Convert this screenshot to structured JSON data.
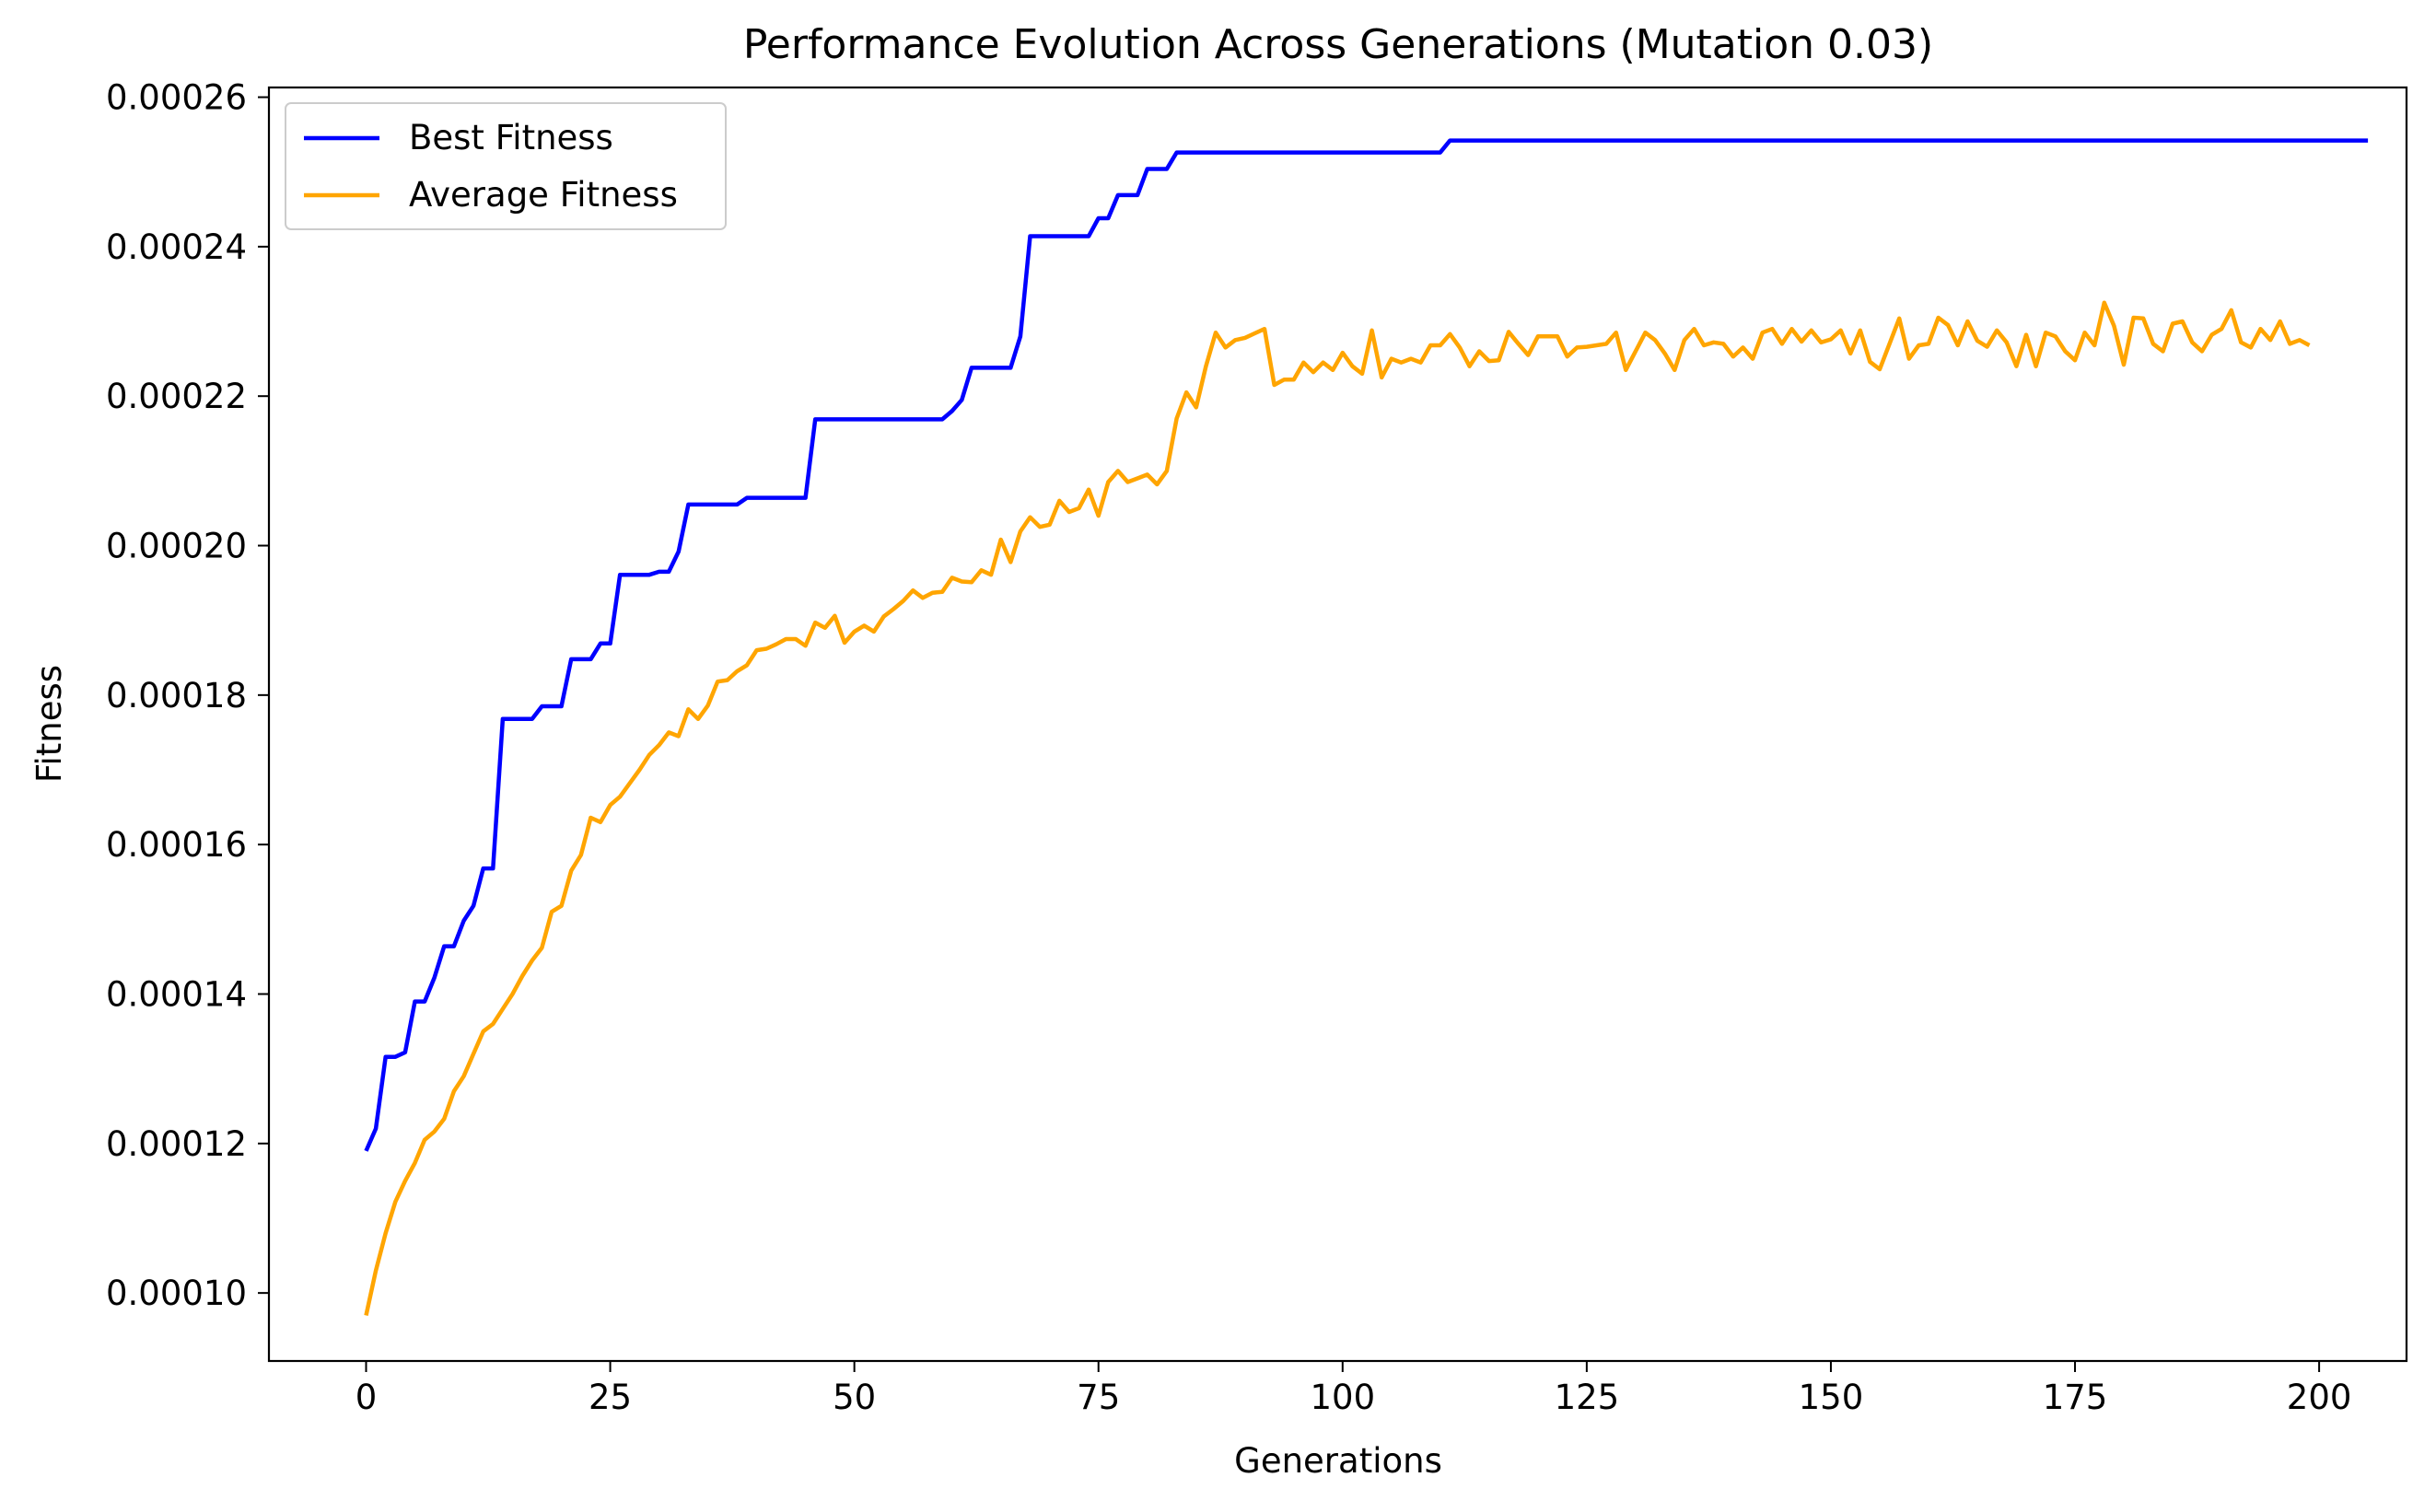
{
  "chart_data": {
    "type": "line",
    "title": "Performance Evolution Across Generations (Mutation 0.03)",
    "xlabel": "Generations",
    "ylabel": "Fitness",
    "xlim": [
      -9.95,
      208.95
    ],
    "ylim": [
      9.09e-05,
      0.0002613
    ],
    "x_ticks": [
      0,
      25,
      50,
      75,
      100,
      125,
      150,
      175,
      200
    ],
    "x_tick_labels": [
      "0",
      "25",
      "50",
      "75",
      "100",
      "125",
      "150",
      "175",
      "200"
    ],
    "y_ticks": [
      0.0001,
      0.00012,
      0.00014,
      0.00016,
      0.00018,
      0.0002,
      0.00022,
      0.00024,
      0.00026
    ],
    "y_tick_labels": [
      "0.00010",
      "0.00012",
      "0.00014",
      "0.00016",
      "0.00018",
      "0.00020",
      "0.00022",
      "0.00024",
      "0.00026"
    ],
    "grid": false,
    "legend_position": "top-left",
    "series": [
      {
        "name": "Best Fitness",
        "color": "#0000ff",
        "values": [
          0.000119,
          0.000122,
          0.0001316,
          0.0001316,
          0.0001322,
          0.000139,
          0.000139,
          0.0001422,
          0.0001464,
          0.0001464,
          0.0001498,
          0.0001518,
          0.0001568,
          0.0001568,
          0.0001768,
          0.0001768,
          0.0001768,
          0.0001768,
          0.0001785,
          0.0001785,
          0.0001785,
          0.0001848,
          0.0001848,
          0.0001848,
          0.0001869,
          0.0001869,
          0.0001961,
          0.0001961,
          0.0001961,
          0.0001961,
          0.0001965,
          0.0001965,
          0.0001992,
          0.0002055,
          0.0002055,
          0.0002055,
          0.0002055,
          0.0002055,
          0.0002055,
          0.0002064,
          0.0002064,
          0.0002064,
          0.0002064,
          0.0002064,
          0.0002064,
          0.0002064,
          0.0002169,
          0.0002169,
          0.0002169,
          0.0002169,
          0.0002169,
          0.0002169,
          0.0002169,
          0.0002169,
          0.0002169,
          0.0002169,
          0.0002169,
          0.0002169,
          0.0002169,
          0.0002169,
          0.000218,
          0.0002195,
          0.0002238,
          0.0002238,
          0.0002238,
          0.0002238,
          0.0002238,
          0.000228,
          0.0002414,
          0.0002414,
          0.0002414,
          0.0002414,
          0.0002414,
          0.0002414,
          0.0002414,
          0.0002438,
          0.0002438,
          0.0002469,
          0.0002469,
          0.0002469,
          0.0002504,
          0.0002504,
          0.0002504,
          0.0002526,
          0.0002526,
          0.0002526,
          0.0002526,
          0.0002526,
          0.0002526,
          0.0002526,
          0.0002526,
          0.0002526,
          0.0002526,
          0.0002526,
          0.0002526,
          0.0002526,
          0.0002526,
          0.0002526,
          0.0002526,
          0.0002526,
          0.0002526,
          0.0002526,
          0.0002526,
          0.0002526,
          0.0002526,
          0.0002526,
          0.0002526,
          0.0002526,
          0.0002526,
          0.0002526,
          0.0002526,
          0.0002542,
          0.0002542,
          0.0002542,
          0.0002542,
          0.0002542,
          0.0002542,
          0.0002542,
          0.0002542,
          0.0002542,
          0.0002542,
          0.0002542,
          0.0002542,
          0.0002542,
          0.0002542,
          0.0002542,
          0.0002542,
          0.0002542,
          0.0002542,
          0.0002542,
          0.0002542,
          0.0002542,
          0.0002542,
          0.0002542,
          0.0002542,
          0.0002542,
          0.0002542,
          0.0002542,
          0.0002542,
          0.0002542,
          0.0002542,
          0.0002542,
          0.0002542,
          0.0002542,
          0.0002542,
          0.0002542,
          0.0002542,
          0.0002542,
          0.0002542,
          0.0002542,
          0.0002542,
          0.0002542,
          0.0002542,
          0.0002542,
          0.0002542,
          0.0002542,
          0.0002542,
          0.0002542,
          0.0002542,
          0.0002542,
          0.0002542,
          0.0002542,
          0.0002542,
          0.0002542,
          0.0002542,
          0.0002542,
          0.0002542,
          0.0002542,
          0.0002542,
          0.0002542,
          0.0002542,
          0.0002542,
          0.0002542,
          0.0002542,
          0.0002542,
          0.0002542,
          0.0002542,
          0.0002542,
          0.0002542,
          0.0002542,
          0.0002542,
          0.0002542,
          0.0002542,
          0.0002542,
          0.0002542,
          0.0002542,
          0.0002542,
          0.0002542,
          0.0002542,
          0.0002542,
          0.0002542,
          0.0002542,
          0.0002542,
          0.0002542,
          0.0002542,
          0.0002542,
          0.0002542,
          0.0002542,
          0.0002542,
          0.0002542,
          0.0002542,
          0.0002542,
          0.0002542,
          0.0002542,
          0.0002542,
          0.0002542
        ]
      },
      {
        "name": "Average Fitness",
        "color": "#ffa500",
        "values": [
          9.7e-05,
          0.000103,
          0.000108,
          0.0001122,
          0.000115,
          0.0001174,
          0.0001205,
          0.0001216,
          0.0001233,
          0.000127,
          0.000129,
          0.000132,
          0.000135,
          0.000136,
          0.000138,
          0.00014,
          0.0001424,
          0.0001445,
          0.0001462,
          0.000151,
          0.0001518,
          0.0001565,
          0.0001586,
          0.0001636,
          0.000163,
          0.0001653,
          0.0001664,
          0.0001682,
          0.00017,
          0.000172,
          0.0001733,
          0.000175,
          0.0001745,
          0.0001781,
          0.0001768,
          0.0001786,
          0.0001818,
          0.000182,
          0.0001832,
          0.000184,
          0.000186,
          0.0001862,
          0.0001868,
          0.0001875,
          0.0001875,
          0.0001866,
          0.0001897,
          0.000189,
          0.0001906,
          0.000187,
          0.0001885,
          0.0001893,
          0.0001885,
          0.0001905,
          0.0001915,
          0.0001926,
          0.000194,
          0.000193,
          0.0001937,
          0.0001938,
          0.0001957,
          0.0001952,
          0.0001951,
          0.0001967,
          0.0001961,
          0.0002008,
          0.0001978,
          0.0002019,
          0.0002038,
          0.0002025,
          0.0002028,
          0.000206,
          0.0002045,
          0.000205,
          0.0002075,
          0.000204,
          0.0002085,
          0.00021,
          0.0002085,
          0.000209,
          0.0002095,
          0.0002082,
          0.00021,
          0.000217,
          0.0002205,
          0.0002185,
          0.000224,
          0.0002285,
          0.0002265,
          0.0002275,
          0.0002278,
          0.0002284,
          0.000229,
          0.0002215,
          0.0002222,
          0.0002222,
          0.0002245,
          0.0002232,
          0.0002245,
          0.0002235,
          0.0002258,
          0.000224,
          0.000223,
          0.0002288,
          0.0002225,
          0.000225,
          0.0002245,
          0.000225,
          0.0002245,
          0.0002268,
          0.0002268,
          0.0002283,
          0.0002265,
          0.000224,
          0.000226,
          0.0002247,
          0.0002248,
          0.0002286,
          0.000227,
          0.0002255,
          0.000228,
          0.000228,
          0.000228,
          0.0002253,
          0.0002265,
          0.0002266,
          0.0002268,
          0.000227,
          0.0002285,
          0.0002235,
          0.000226,
          0.0002285,
          0.0002275,
          0.0002257,
          0.0002235,
          0.0002275,
          0.000229,
          0.0002268,
          0.0002272,
          0.000227,
          0.0002253,
          0.0002265,
          0.000225,
          0.0002285,
          0.000229,
          0.000227,
          0.000229,
          0.0002273,
          0.0002288,
          0.0002272,
          0.0002276,
          0.0002288,
          0.0002257,
          0.0002288,
          0.0002246,
          0.0002236,
          0.000227,
          0.0002304,
          0.000225,
          0.0002268,
          0.000227,
          0.0002305,
          0.0002295,
          0.0002268,
          0.00023,
          0.0002274,
          0.0002266,
          0.0002288,
          0.0002272,
          0.000224,
          0.0002282,
          0.000224,
          0.0002285,
          0.000228,
          0.000226,
          0.0002248,
          0.0002285,
          0.0002268,
          0.0002325,
          0.0002294,
          0.0002242,
          0.0002305,
          0.0002304,
          0.000227,
          0.000226,
          0.0002297,
          0.00023,
          0.0002272,
          0.000226,
          0.0002282,
          0.000229,
          0.0002315,
          0.0002272,
          0.0002265,
          0.000229,
          0.0002275,
          0.00023,
          0.000227,
          0.0002275,
          0.0002268
        ]
      }
    ]
  }
}
